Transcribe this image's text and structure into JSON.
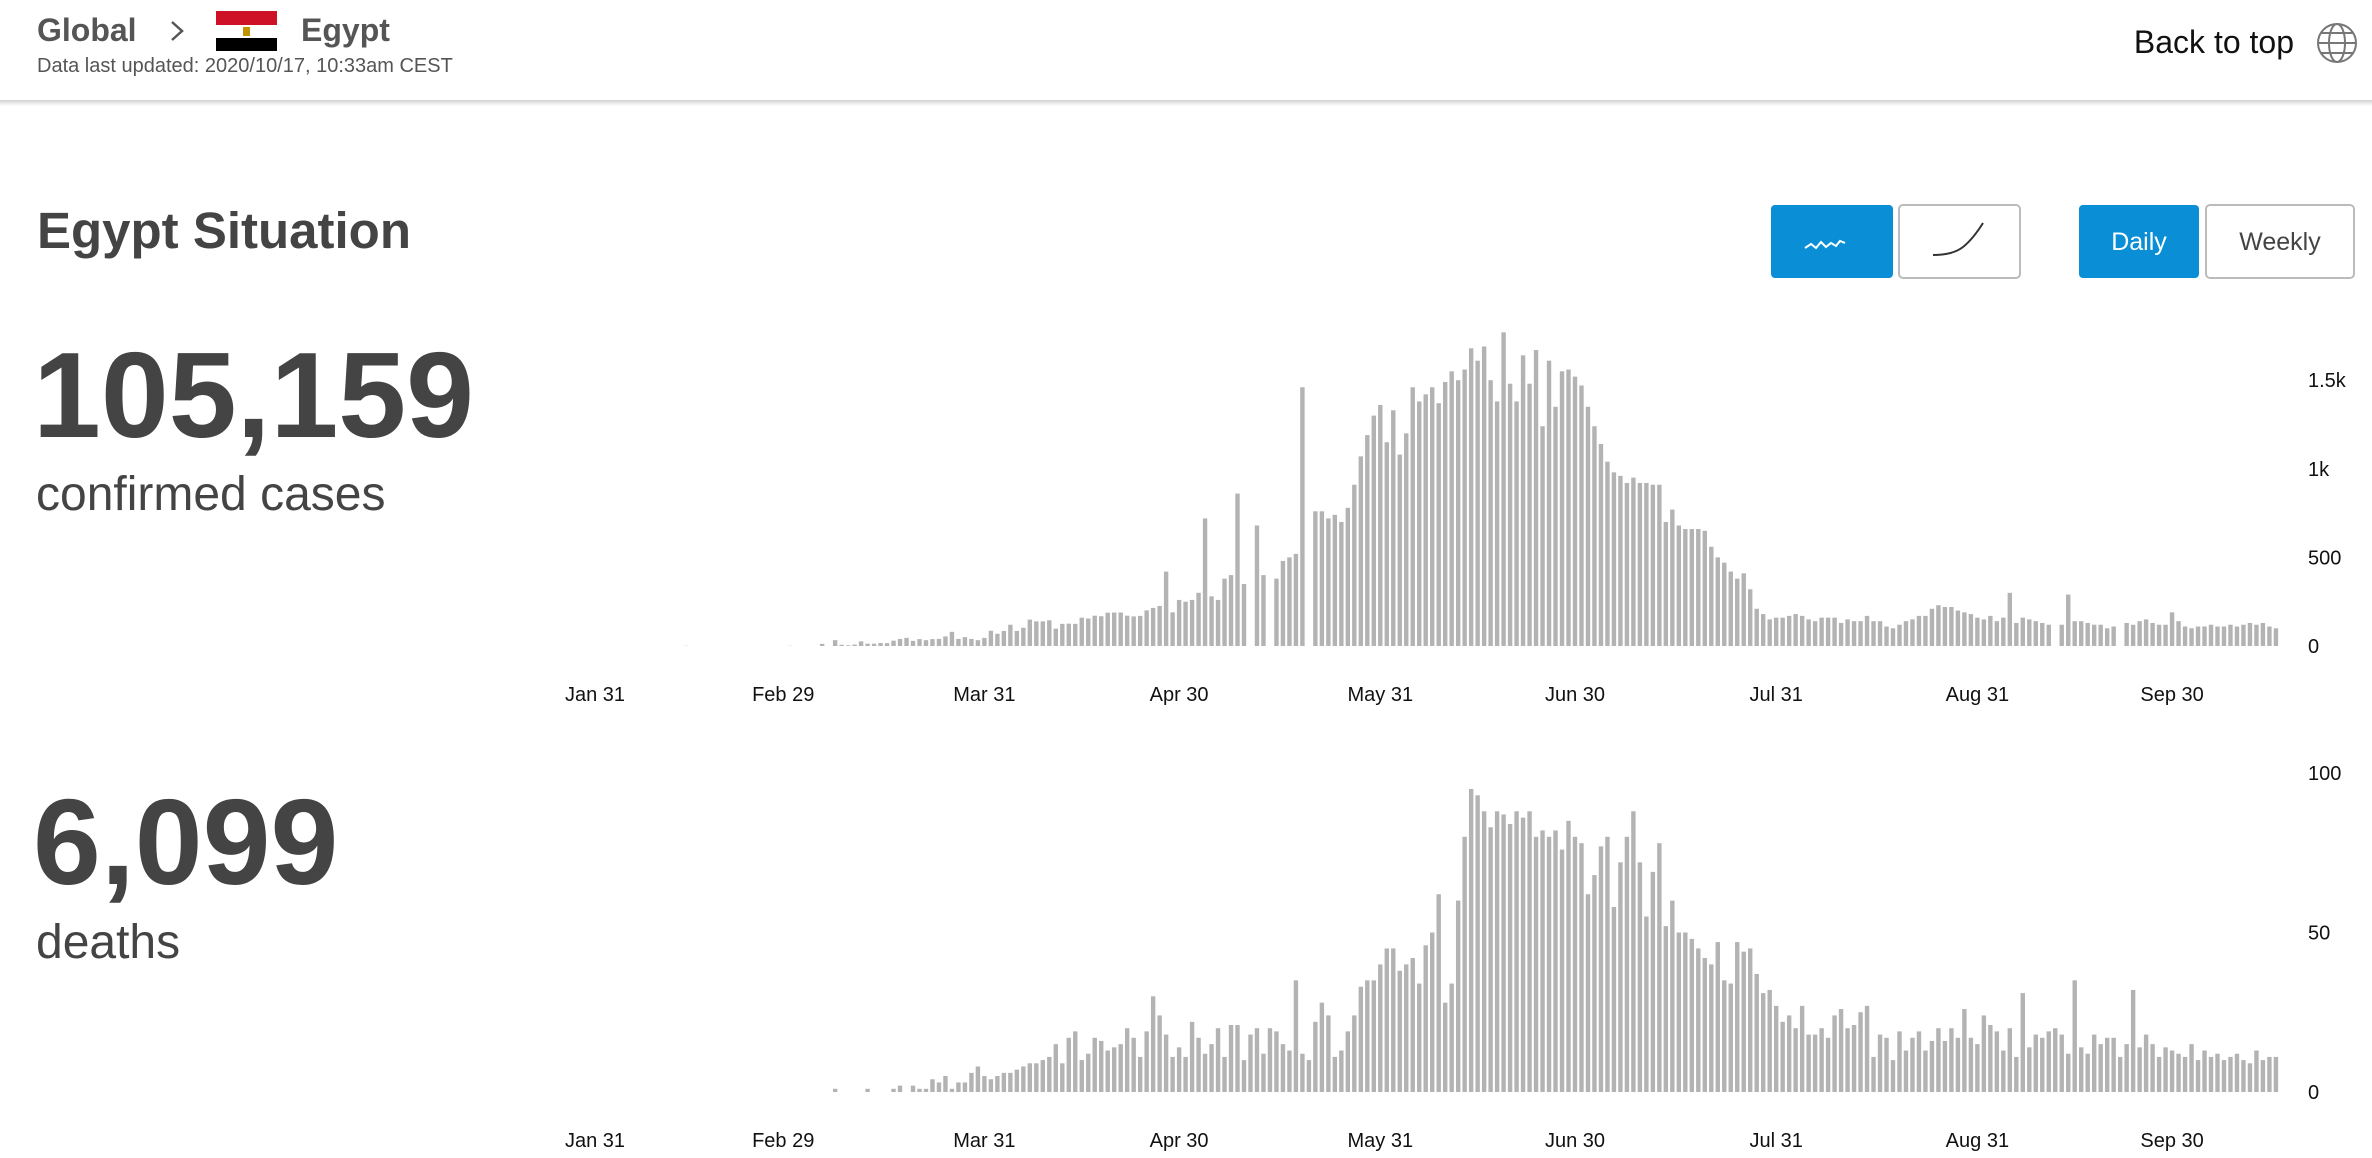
{
  "header": {
    "root": "Global",
    "country": "Egypt",
    "updated": "Data last updated: 2020/10/17, 10:33am CEST",
    "back_to_top": "Back to top"
  },
  "situation": {
    "title": "Egypt Situation",
    "periods": [
      "Daily",
      "Weekly"
    ]
  },
  "stats": [
    {
      "value": "105,159",
      "label": "confirmed cases"
    },
    {
      "value": "6,099",
      "label": "deaths"
    }
  ],
  "chart_data": [
    {
      "type": "bar",
      "color": "#b3b3b3",
      "ylim": [
        0,
        1800
      ],
      "yticks": [
        0,
        500,
        {
          "value": 1000,
          "label": "1k"
        },
        {
          "value": 1500,
          "label": "1.5k"
        }
      ],
      "categories": [
        "Jan 31",
        null,
        null,
        null,
        null,
        null,
        null,
        null,
        null,
        null,
        null,
        null,
        null,
        null,
        null,
        null,
        null,
        null,
        null,
        null,
        null,
        null,
        null,
        null,
        null,
        null,
        null,
        null,
        null,
        "Feb 29",
        null,
        null,
        null,
        null,
        null,
        null,
        null,
        null,
        null,
        null,
        null,
        null,
        null,
        null,
        null,
        null,
        null,
        null,
        null,
        null,
        null,
        null,
        null,
        null,
        null,
        null,
        null,
        null,
        null,
        null,
        "Mar 31",
        null,
        null,
        null,
        null,
        null,
        null,
        null,
        null,
        null,
        null,
        null,
        null,
        null,
        null,
        null,
        null,
        null,
        null,
        null,
        null,
        null,
        null,
        null,
        null,
        null,
        null,
        null,
        null,
        null,
        "Apr 30",
        null,
        null,
        null,
        null,
        null,
        null,
        null,
        null,
        null,
        null,
        null,
        null,
        null,
        null,
        null,
        null,
        null,
        null,
        null,
        null,
        null,
        null,
        null,
        null,
        null,
        null,
        null,
        null,
        null,
        null,
        "May 31",
        null,
        null,
        null,
        null,
        null,
        null,
        null,
        null,
        null,
        null,
        null,
        null,
        null,
        null,
        null,
        null,
        null,
        null,
        null,
        null,
        null,
        null,
        null,
        null,
        null,
        null,
        null,
        null,
        null,
        "Jun 30",
        null,
        null,
        null,
        null,
        null,
        null,
        null,
        null,
        null,
        null,
        null,
        null,
        null,
        null,
        null,
        null,
        null,
        null,
        null,
        null,
        null,
        null,
        null,
        null,
        null,
        null,
        null,
        null,
        null,
        null,
        "Jul 31",
        null,
        null,
        null,
        null,
        null,
        null,
        null,
        null,
        null,
        null,
        null,
        null,
        null,
        null,
        null,
        null,
        null,
        null,
        null,
        null,
        null,
        null,
        null,
        null,
        null,
        null,
        null,
        null,
        null,
        null,
        "Aug 31",
        null,
        null,
        null,
        null,
        null,
        null,
        null,
        null,
        null,
        null,
        null,
        null,
        null,
        null,
        null,
        null,
        null,
        null,
        null,
        null,
        null,
        null,
        null,
        null,
        null,
        null,
        null,
        null,
        null,
        "Sep 30",
        null,
        null,
        null,
        null,
        null,
        null,
        null,
        null,
        null,
        null,
        null,
        null,
        null,
        null,
        null,
        null
      ],
      "values": [
        0,
        0,
        0,
        0,
        0,
        0,
        0,
        0,
        0,
        0,
        0,
        0,
        0,
        0,
        1,
        0,
        0,
        0,
        0,
        0,
        0,
        0,
        0,
        0,
        0,
        0,
        0,
        0,
        0,
        0,
        1,
        0,
        0,
        0,
        0,
        12,
        0,
        33,
        7,
        4,
        8,
        26,
        13,
        13,
        17,
        16,
        30,
        40,
        46,
        29,
        39,
        33,
        39,
        40,
        54,
        80,
        40,
        50,
        40,
        33,
        46,
        86,
        69,
        85,
        120,
        85,
        103,
        149,
        139,
        139,
        145,
        98,
        125,
        126,
        125,
        160,
        155,
        171,
        168,
        188,
        189,
        189,
        171,
        167,
        170,
        201,
        215,
        226,
        420,
        190,
        260,
        250,
        260,
        300,
        720,
        280,
        260,
        380,
        400,
        860,
        350,
        0,
        680,
        400,
        0,
        380,
        480,
        500,
        520,
        1460,
        0,
        760,
        760,
        720,
        740,
        700,
        780,
        910,
        1070,
        1190,
        1300,
        1360,
        1150,
        1330,
        1080,
        1200,
        1460,
        1380,
        1420,
        1460,
        1370,
        1490,
        1550,
        1500,
        1560,
        1680,
        1610,
        1690,
        1500,
        1380,
        1770,
        1480,
        1380,
        1640,
        1480,
        1670,
        1240,
        1610,
        1350,
        1550,
        1560,
        1520,
        1470,
        1350,
        1240,
        1140,
        1040,
        980,
        960,
        920,
        950,
        920,
        920,
        910,
        910,
        700,
        770,
        680,
        660,
        660,
        660,
        650,
        560,
        500,
        470,
        420,
        380,
        410,
        320,
        210,
        180,
        150,
        160,
        160,
        170,
        180,
        170,
        150,
        140,
        160,
        160,
        160,
        130,
        150,
        140,
        140,
        170,
        140,
        140,
        110,
        100,
        120,
        140,
        150,
        170,
        170,
        210,
        230,
        220,
        220,
        200,
        190,
        180,
        160,
        150,
        170,
        140,
        160,
        300,
        130,
        160,
        150,
        140,
        130,
        120,
        0,
        120,
        290,
        140,
        140,
        130,
        120,
        120,
        100,
        110,
        0,
        130,
        120,
        140,
        150,
        130,
        120,
        120,
        190,
        140,
        110,
        100,
        110,
        110,
        120,
        110,
        110,
        120,
        110,
        120,
        130,
        120,
        130,
        110,
        100
      ]
    },
    {
      "type": "bar",
      "color": "#b3b3b3",
      "ylim": [
        0,
        100
      ],
      "yticks": [
        0,
        50,
        100
      ],
      "categories": [
        "Jan 31",
        null,
        null,
        null,
        null,
        null,
        null,
        null,
        null,
        null,
        null,
        null,
        null,
        null,
        null,
        null,
        null,
        null,
        null,
        null,
        null,
        null,
        null,
        null,
        null,
        null,
        null,
        null,
        null,
        "Feb 29",
        null,
        null,
        null,
        null,
        null,
        null,
        null,
        null,
        null,
        null,
        null,
        null,
        null,
        null,
        null,
        null,
        null,
        null,
        null,
        null,
        null,
        null,
        null,
        null,
        null,
        null,
        null,
        null,
        null,
        null,
        "Mar 31",
        null,
        null,
        null,
        null,
        null,
        null,
        null,
        null,
        null,
        null,
        null,
        null,
        null,
        null,
        null,
        null,
        null,
        null,
        null,
        null,
        null,
        null,
        null,
        null,
        null,
        null,
        null,
        null,
        null,
        "Apr 30",
        null,
        null,
        null,
        null,
        null,
        null,
        null,
        null,
        null,
        null,
        null,
        null,
        null,
        null,
        null,
        null,
        null,
        null,
        null,
        null,
        null,
        null,
        null,
        null,
        null,
        null,
        null,
        null,
        null,
        null,
        "May 31",
        null,
        null,
        null,
        null,
        null,
        null,
        null,
        null,
        null,
        null,
        null,
        null,
        null,
        null,
        null,
        null,
        null,
        null,
        null,
        null,
        null,
        null,
        null,
        null,
        null,
        null,
        null,
        null,
        null,
        "Jun 30",
        null,
        null,
        null,
        null,
        null,
        null,
        null,
        null,
        null,
        null,
        null,
        null,
        null,
        null,
        null,
        null,
        null,
        null,
        null,
        null,
        null,
        null,
        null,
        null,
        null,
        null,
        null,
        null,
        null,
        null,
        "Jul 31",
        null,
        null,
        null,
        null,
        null,
        null,
        null,
        null,
        null,
        null,
        null,
        null,
        null,
        null,
        null,
        null,
        null,
        null,
        null,
        null,
        null,
        null,
        null,
        null,
        null,
        null,
        null,
        null,
        null,
        null,
        "Aug 31",
        null,
        null,
        null,
        null,
        null,
        null,
        null,
        null,
        null,
        null,
        null,
        null,
        null,
        null,
        null,
        null,
        null,
        null,
        null,
        null,
        null,
        null,
        null,
        null,
        null,
        null,
        null,
        null,
        null,
        "Sep 30",
        null,
        null,
        null,
        null,
        null,
        null,
        null,
        null,
        null,
        null,
        null,
        null,
        null,
        null,
        null,
        null
      ],
      "values": [
        0,
        0,
        0,
        0,
        0,
        0,
        0,
        0,
        0,
        0,
        0,
        0,
        0,
        0,
        0,
        0,
        0,
        0,
        0,
        0,
        0,
        0,
        0,
        0,
        0,
        0,
        0,
        0,
        0,
        0,
        0,
        0,
        0,
        0,
        0,
        0,
        0,
        1,
        0,
        0,
        0,
        0,
        1,
        0,
        0,
        0,
        1,
        2,
        0,
        2,
        1,
        1,
        4,
        3,
        5,
        1,
        3,
        3,
        6,
        8,
        5,
        4,
        5,
        6,
        6,
        7,
        8,
        9,
        9,
        10,
        11,
        15,
        9,
        17,
        19,
        10,
        12,
        17,
        16,
        13,
        14,
        15,
        20,
        17,
        11,
        19,
        30,
        24,
        18,
        11,
        14,
        11,
        22,
        17,
        12,
        15,
        20,
        11,
        21,
        21,
        10,
        18,
        20,
        12,
        20,
        19,
        15,
        13,
        35,
        12,
        10,
        22,
        28,
        24,
        11,
        13,
        19,
        24,
        33,
        35,
        35,
        40,
        45,
        45,
        38,
        40,
        42,
        34,
        46,
        50,
        62,
        28,
        34,
        60,
        80,
        95,
        93,
        88,
        83,
        88,
        87,
        84,
        88,
        86,
        88,
        80,
        82,
        80,
        82,
        76,
        85,
        80,
        78,
        62,
        68,
        77,
        80,
        58,
        72,
        80,
        88,
        72,
        55,
        69,
        78,
        52,
        60,
        50,
        50,
        48,
        45,
        42,
        40,
        47,
        35,
        34,
        47,
        44,
        45,
        37,
        31,
        32,
        27,
        22,
        24,
        20,
        27,
        18,
        18,
        20,
        17,
        24,
        26,
        20,
        21,
        25,
        27,
        11,
        18,
        17,
        10,
        19,
        13,
        17,
        19,
        13,
        16,
        20,
        16,
        20,
        17,
        26,
        17,
        15,
        24,
        21,
        19,
        13,
        20,
        11,
        31,
        14,
        18,
        17,
        19,
        20,
        18,
        12,
        35,
        14,
        12,
        18,
        15,
        17,
        17,
        11,
        15,
        32,
        14,
        18,
        15,
        11,
        14,
        13,
        12,
        11,
        15,
        10,
        13,
        11,
        12,
        10,
        11,
        12,
        10,
        9,
        13,
        10,
        11,
        11
      ]
    }
  ]
}
